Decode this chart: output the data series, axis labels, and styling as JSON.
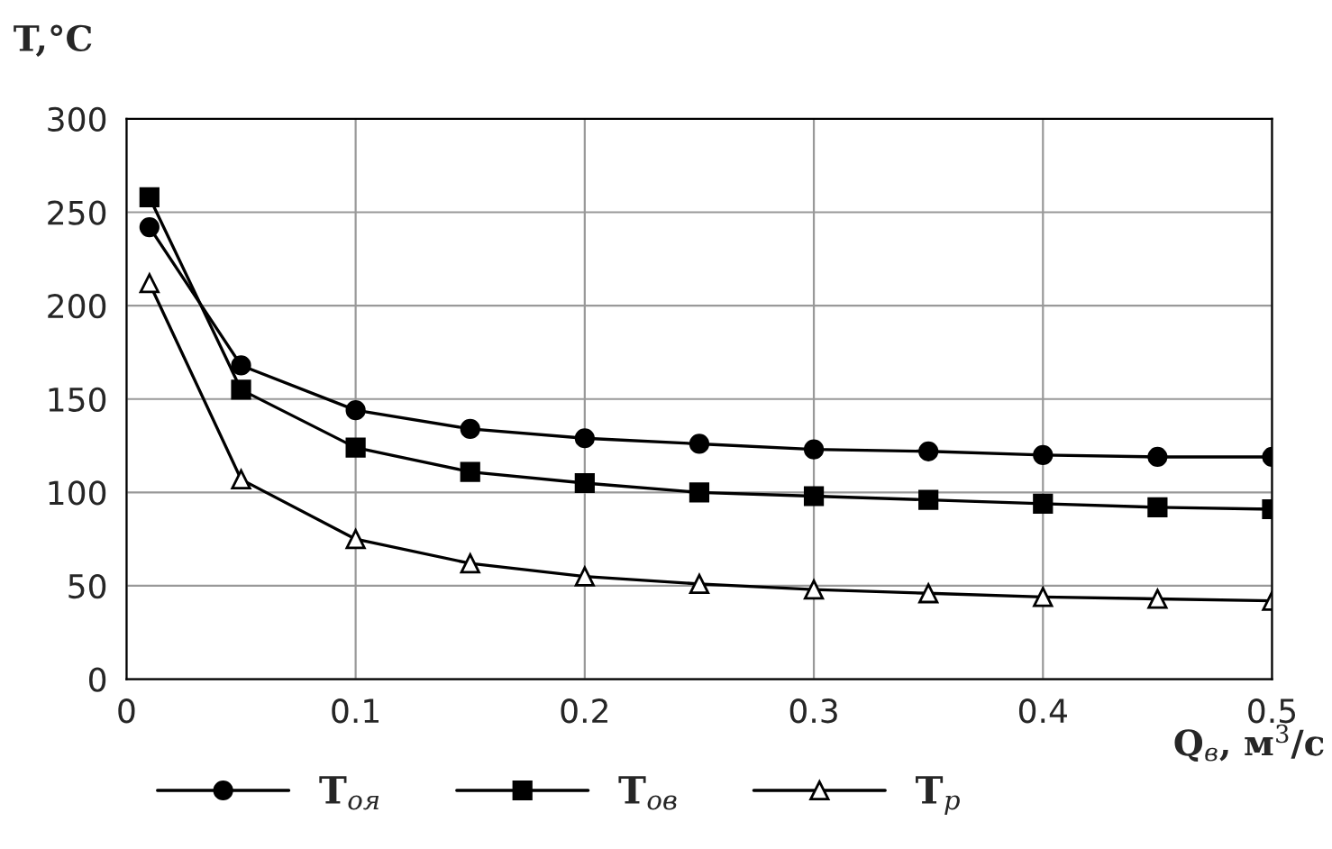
{
  "chart_data": {
    "type": "line",
    "ylabel": "T,°C",
    "xlabel": "Q$_{в}$, м$^{3}$/с",
    "x": [
      0.01,
      0.05,
      0.1,
      0.15,
      0.2,
      0.25,
      0.3,
      0.35,
      0.4,
      0.45,
      0.5
    ],
    "series": [
      {
        "name": "T$_{оя}$",
        "color": "#000000",
        "marker": "circle",
        "values": [
          242,
          168,
          144,
          134,
          129,
          126,
          123,
          122,
          120,
          119,
          119
        ]
      },
      {
        "name": "T$_{ов}$",
        "color": "#000000",
        "marker": "square",
        "values": [
          258,
          155,
          124,
          111,
          105,
          100,
          98,
          96,
          94,
          92,
          91
        ]
      },
      {
        "name": "T$_{р}$",
        "color": "#000000",
        "marker": "triangle",
        "values": [
          212,
          107,
          75,
          62,
          55,
          51,
          48,
          46,
          44,
          43,
          42
        ]
      }
    ],
    "xlim": [
      0,
      0.5
    ],
    "xticks": [
      0,
      0.1,
      0.2,
      0.3,
      0.4,
      0.5
    ],
    "ylim": [
      0,
      300
    ],
    "yticks": [
      0,
      50,
      100,
      150,
      200,
      250,
      300
    ],
    "grid": true,
    "legend": "bottom",
    "line_style": "solid"
  }
}
